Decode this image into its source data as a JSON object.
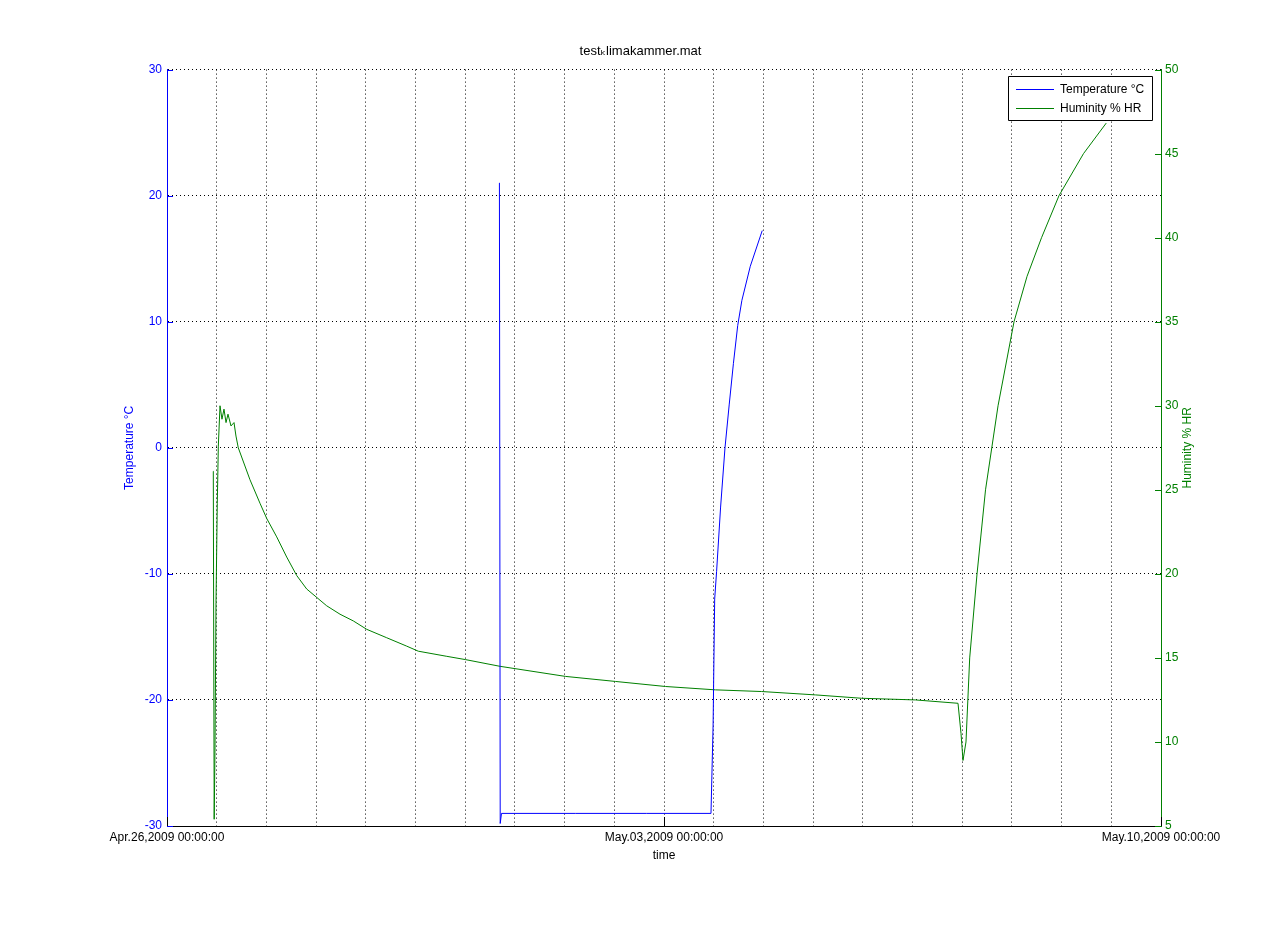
{
  "chart_data": {
    "type": "line",
    "title": "testₖlimakammer.mat",
    "xlabel": "time",
    "ylabel": "Temperature °C",
    "y2label": "Huminity % HR",
    "series": [
      {
        "name": "Temperature °C",
        "color": "#0000ff",
        "x": [
          "2009-04-30T16:22",
          "2009-04-30T16:38",
          "2009-04-30T17:04",
          "2009-05-01T18:00",
          "2009-05-02T18:00",
          "2009-05-03T15:53",
          "2009-05-03T16:36",
          "2009-05-03T17:08",
          "2009-05-03T17:47",
          "2009-05-03T19:08",
          "2009-05-03T20:37",
          "2009-05-03T22:02",
          "2009-05-03T23:28",
          "2009-05-04T00:55",
          "2009-05-04T02:20",
          "2009-05-04T05:10",
          "2009-05-04T09:10"
        ],
        "values": [
          21,
          -29.8,
          -29.0,
          -29.0,
          -29.0,
          -29.0,
          -22,
          -12,
          -9.8,
          -4.7,
          0,
          3.4,
          6.7,
          9.7,
          11.7,
          14.4,
          17.2
        ]
      },
      {
        "name": "Huminity % HR",
        "color": "#008000",
        "axis": "y2",
        "x": [
          "2009-04-26T15:39",
          "2009-04-26T15:57",
          "2009-04-26T16:14",
          "2009-04-26T16:34",
          "2009-04-26T17:00",
          "2009-04-26T17:21",
          "2009-04-26T17:55",
          "2009-04-26T18:35",
          "2009-04-26T19:16",
          "2009-04-26T19:57",
          "2009-04-26T20:37",
          "2009-04-26T21:38",
          "2009-04-26T22:39",
          "2009-04-26T23:19",
          "2009-04-27T00:06",
          "2009-04-27T04:03",
          "2009-04-27T07:26",
          "2009-04-27T09:42",
          "2009-04-27T13:05",
          "2009-04-27T16:28",
          "2009-04-27T19:51",
          "2009-04-27T23:13",
          "2009-04-28T02:36",
          "2009-04-28T05:59",
          "2009-04-28T10:29",
          "2009-04-28T14:59",
          "2009-04-28T19:31",
          "2009-04-29T02:16",
          "2009-04-29T09:02",
          "2009-04-29T12:57",
          "2009-04-29T22:23",
          "2009-04-30T04:52",
          "2009-04-30T16:34",
          "2009-05-01T14:40",
          "2009-05-02T07:35",
          "2009-05-03T00:29",
          "2009-05-03T17:23",
          "2009-05-04T08:58",
          "2009-05-05T03:11",
          "2009-05-05T18:46",
          "2009-05-06T12:59",
          "2009-05-07T03:23",
          "2009-05-07T04:24",
          "2009-05-07T05:04",
          "2009-05-07T06:05",
          "2009-05-07T07:20",
          "2009-05-07T09:49",
          "2009-05-07T12:41",
          "2009-05-07T16:55",
          "2009-05-07T22:19",
          "2009-05-08T02:43",
          "2009-05-08T07:37",
          "2009-05-08T13:31",
          "2009-05-08T21:48",
          "2009-05-09T05:25"
        ],
        "values": [
          26.1,
          5.4,
          9.7,
          18.3,
          24.2,
          27.6,
          30.0,
          29.2,
          29.8,
          29.0,
          29.5,
          28.8,
          29.0,
          28.2,
          27.5,
          25.6,
          24.2,
          23.3,
          22.2,
          21.0,
          19.9,
          19.1,
          18.6,
          18.1,
          17.6,
          17.2,
          16.7,
          16.2,
          15.7,
          15.4,
          15.1,
          14.9,
          14.5,
          13.9,
          13.6,
          13.3,
          13.1,
          13.0,
          12.8,
          12.6,
          12.5,
          12.3,
          10.5,
          8.9,
          10.0,
          15.0,
          20.0,
          25.0,
          30.0,
          35.0,
          37.7,
          40.0,
          42.5,
          45.0,
          46.8
        ]
      }
    ],
    "xlim": [
      "2009-04-26T00:00",
      "2009-05-10T00:00"
    ],
    "xticks": [
      {
        "value": "2009-04-26T00:00",
        "label": "Apr.26,2009 00:00:00"
      },
      {
        "value": "2009-04-26T16:48",
        "label": null
      },
      {
        "value": "2009-04-27T09:36",
        "label": null
      },
      {
        "value": "2009-04-28T02:24",
        "label": null
      },
      {
        "value": "2009-04-28T19:12",
        "label": null
      },
      {
        "value": "2009-04-29T12:00",
        "label": null
      },
      {
        "value": "2009-04-30T04:48",
        "label": null
      },
      {
        "value": "2009-04-30T21:36",
        "label": null
      },
      {
        "value": "2009-05-01T14:24",
        "label": null
      },
      {
        "value": "2009-05-02T07:12",
        "label": null
      },
      {
        "value": "2009-05-03T00:00",
        "label": "May.03,2009 00:00:00"
      },
      {
        "value": "2009-05-03T16:48",
        "label": null
      },
      {
        "value": "2009-05-04T09:36",
        "label": null
      },
      {
        "value": "2009-05-05T02:24",
        "label": null
      },
      {
        "value": "2009-05-05T19:12",
        "label": null
      },
      {
        "value": "2009-05-06T12:00",
        "label": null
      },
      {
        "value": "2009-05-07T04:48",
        "label": null
      },
      {
        "value": "2009-05-07T21:36",
        "label": null
      },
      {
        "value": "2009-05-08T14:24",
        "label": null
      },
      {
        "value": "2009-05-09T07:12",
        "label": null
      },
      {
        "value": "2009-05-10T00:00",
        "label": "May.10,2009 00:00:00"
      }
    ],
    "ylim": [
      -30,
      30
    ],
    "yticks": [
      -30,
      -20,
      -10,
      0,
      10,
      20,
      30
    ],
    "y2lim": [
      5,
      50
    ],
    "y2ticks": [
      5,
      10,
      15,
      20,
      25,
      30,
      35,
      40,
      45,
      50
    ],
    "grid": true,
    "legend": "top right"
  }
}
